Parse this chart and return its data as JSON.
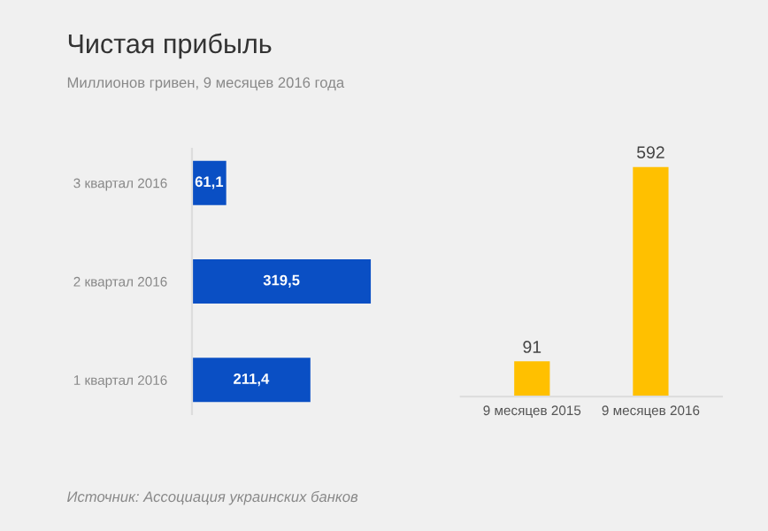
{
  "chart_data": [
    {
      "type": "bar",
      "title": "Чистая прибыль",
      "subtitle": "Миллионов гривен, 9 месяцев 2016 года",
      "orientation": "horizontal",
      "categories": [
        "3 квартал 2016",
        "2 квартал 2016",
        "1 квартал 2016"
      ],
      "values": [
        61.1,
        319.5,
        211.4
      ],
      "value_labels": [
        "61,1",
        "319,5",
        "211,4"
      ],
      "color": "#0a4fc4",
      "annotations": [
        "Источник: Ассоциация украинских банков"
      ]
    },
    {
      "type": "bar",
      "categories": [
        "9 месяцев 2015",
        "9 месяцев 2016"
      ],
      "values": [
        91,
        592
      ],
      "data_labels": true,
      "color": "#ffc000"
    }
  ]
}
